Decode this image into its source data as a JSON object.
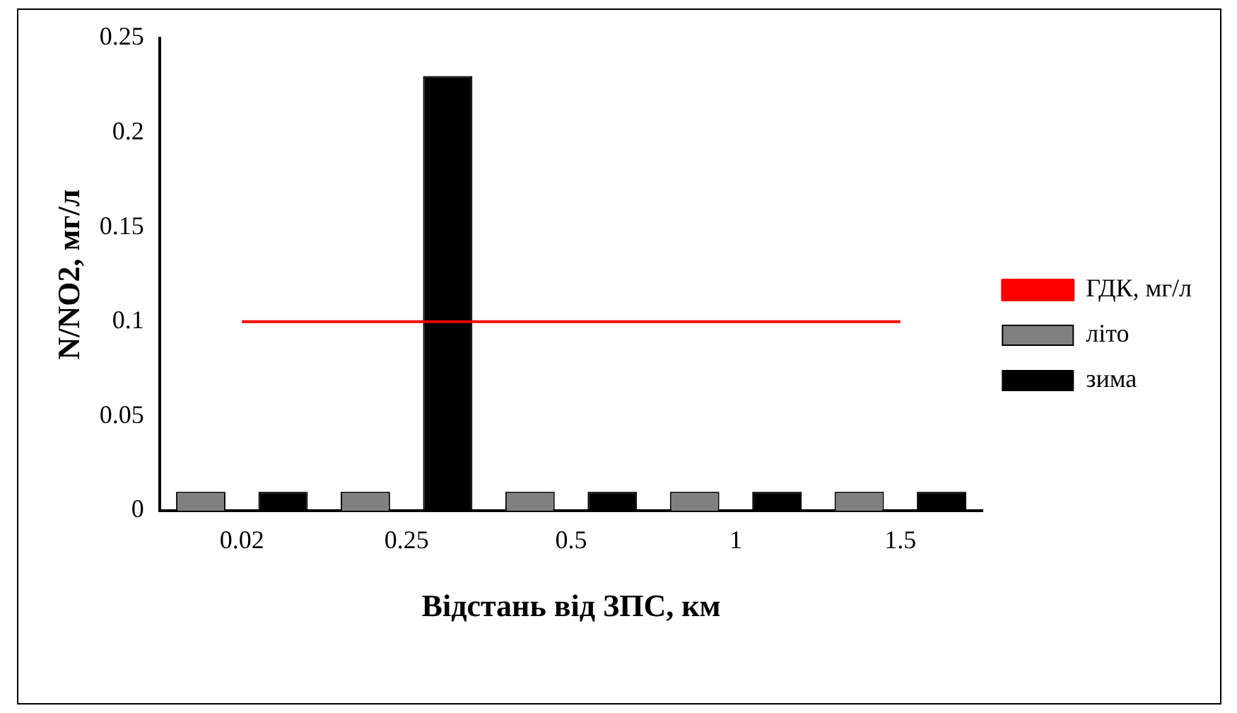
{
  "chart_data": {
    "type": "bar",
    "xlabel": "Відстань від ЗПС, км",
    "ylabel": "N/NO2, мг/л",
    "categories": [
      "0.02",
      "0.25",
      "0.5",
      "1",
      "1.5"
    ],
    "series": [
      {
        "name": "літо",
        "color": "#808080",
        "values": [
          0.01,
          0.01,
          0.01,
          0.01,
          0.01
        ]
      },
      {
        "name": "зима",
        "color": "#000000",
        "values": [
          0.01,
          0.23,
          0.01,
          0.01,
          0.01
        ]
      },
      {
        "name": "ГДК, мг/л",
        "type": "line",
        "color": "#ff0000",
        "values": [
          0.1,
          0.1,
          0.1,
          0.1,
          0.1
        ]
      }
    ],
    "ylim": [
      0,
      0.25
    ],
    "yticks": [
      0,
      0.05,
      0.1,
      0.15,
      0.2,
      0.25
    ],
    "grid": false,
    "legend": "right",
    "marker": "none"
  }
}
